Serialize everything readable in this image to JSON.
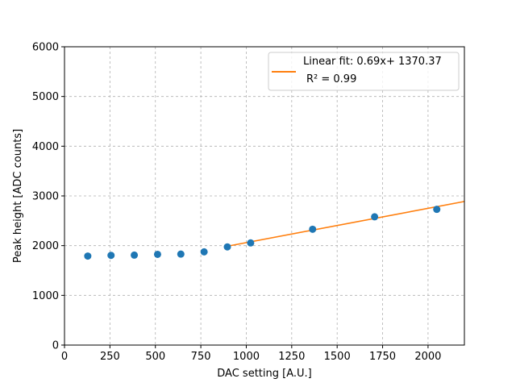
{
  "chart_data": {
    "type": "scatter",
    "xlabel": "DAC setting [A.U.]",
    "ylabel": "Peak height [ADC counts]",
    "xlim": [
      0,
      2200
    ],
    "ylim": [
      0,
      6000
    ],
    "xticks": [
      0,
      250,
      500,
      750,
      1000,
      1250,
      1500,
      1750,
      2000
    ],
    "yticks": [
      0,
      1000,
      2000,
      3000,
      4000,
      5000,
      6000
    ],
    "grid": true,
    "legend_position": "top-right",
    "colors": {
      "points": "#1f77b4",
      "fit": "#ff7f0e",
      "grid": "#b0b0b0"
    },
    "series": [
      {
        "type": "scatter",
        "x": [
          128,
          256,
          384,
          512,
          640,
          768,
          896,
          1024,
          1365,
          1706,
          2048
        ],
        "y": [
          1790,
          1805,
          1810,
          1825,
          1830,
          1875,
          1975,
          2055,
          2330,
          2580,
          2730
        ]
      },
      {
        "name": "Linear fit: 0.69x+ 1370.37",
        "name_line2": "R² = 0.99",
        "type": "line",
        "slope": 0.69,
        "intercept": 1370.37,
        "x_range": [
          896,
          2200
        ]
      }
    ]
  }
}
